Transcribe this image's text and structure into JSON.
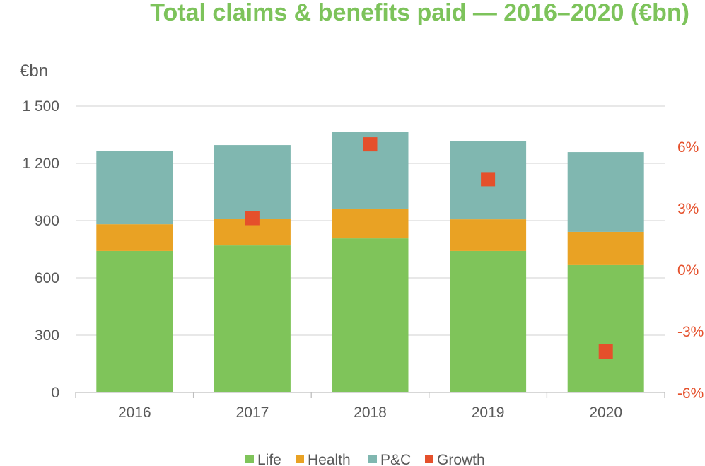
{
  "chart_data": {
    "type": "bar",
    "title": "Total claims & benefits paid — 2016–2020 (€bn)",
    "ylabel": "€bn",
    "xlabel": "",
    "categories": [
      "2016",
      "2017",
      "2018",
      "2019",
      "2020"
    ],
    "ylim": [
      0,
      1500
    ],
    "yticks": [
      0,
      300,
      600,
      900,
      1200,
      1500
    ],
    "ytick_labels": [
      "0",
      "300",
      "600",
      "900",
      "1 200",
      "1 500"
    ],
    "y2lim": [
      -6,
      6
    ],
    "y2ticks": [
      -6,
      -3,
      0,
      3,
      6
    ],
    "y2tick_labels": [
      "-6%",
      "-3%",
      "0%",
      "3%",
      "6%"
    ],
    "grid": true,
    "legend_position": "bottom",
    "series": [
      {
        "name": "Life",
        "kind": "stacked-bar",
        "color": "#7fc45a",
        "values": [
          741,
          770,
          807,
          741,
          667
        ]
      },
      {
        "name": "Health",
        "kind": "stacked-bar",
        "color": "#e9a224",
        "values": [
          140,
          141,
          156,
          166,
          174
        ]
      },
      {
        "name": "P&C",
        "kind": "stacked-bar",
        "color": "#80b7b0",
        "values": [
          382,
          385,
          400,
          408,
          418
        ]
      },
      {
        "name": "Growth",
        "kind": "marker",
        "axis": "right",
        "color": "#e5502b",
        "values": [
          null,
          2.5,
          6.1,
          4.4,
          -4.0
        ]
      }
    ]
  }
}
